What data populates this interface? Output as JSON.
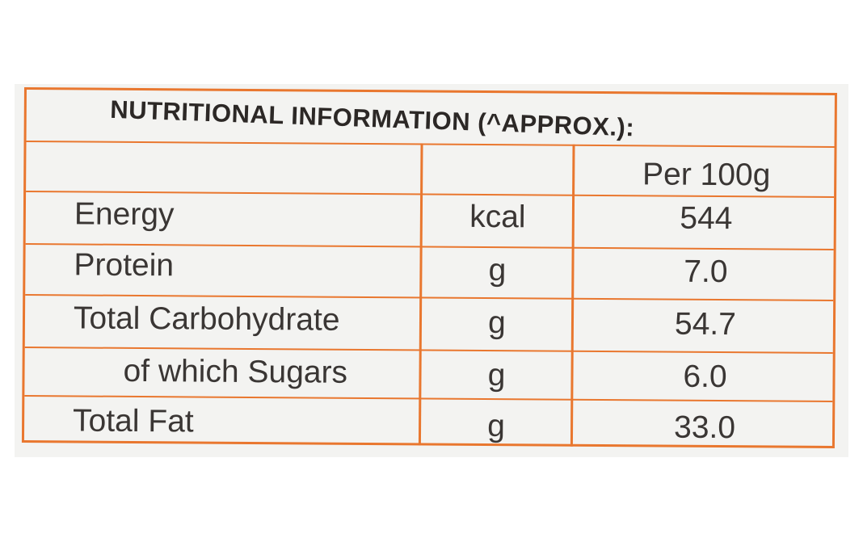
{
  "title": "NUTRITIONAL INFORMATION (^APPROX.):",
  "header": {
    "unit": "",
    "per": "Per 100g"
  },
  "rows": [
    {
      "name": "Energy",
      "unit": "kcal",
      "value": "544"
    },
    {
      "name": "Protein",
      "unit": "g",
      "value": "7.0"
    },
    {
      "name": "Total Carbohydrate",
      "unit": "g",
      "value": "54.7"
    },
    {
      "name": "of which Sugars",
      "unit": "g",
      "value": "6.0"
    },
    {
      "name": "Total Fat",
      "unit": "g",
      "value": "33.0"
    }
  ],
  "colors": {
    "border": "#e9772f",
    "text": "#3a3634",
    "title": "#2c2826",
    "background": "#f3f3f1"
  }
}
